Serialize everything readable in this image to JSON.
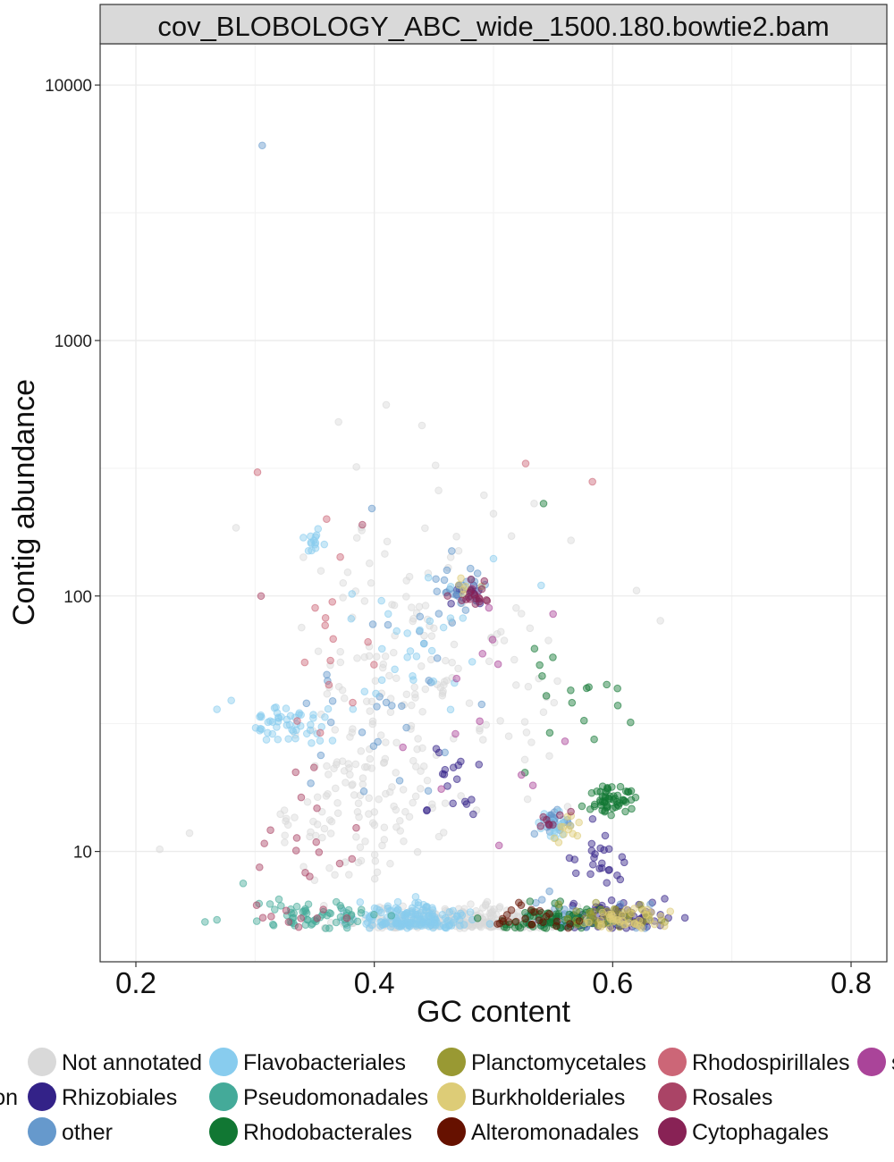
{
  "chart_data": {
    "type": "scatter",
    "title": "cov_BLOBOLOGY_ABC_wide_1500.180.bowtie2.bam",
    "xlabel": "GC content",
    "ylabel": "Contig abundance",
    "x_ticks": [
      "0.2",
      "0.4",
      "0.6",
      "0.8"
    ],
    "x_tick_values": [
      0.2,
      0.4,
      0.6,
      0.8
    ],
    "y_ticks": [
      "10",
      "100",
      "1000",
      "10000"
    ],
    "y_tick_values": [
      10,
      100,
      1000,
      10000
    ],
    "y_scale": "log10",
    "xlim": [
      0.17,
      0.83
    ],
    "ylim": [
      3.7,
      14500
    ],
    "grid": true,
    "legend_position": "bottom",
    "series": [
      {
        "name": "Not annotated",
        "color": "#d9d9d9",
        "clusters": [
          {
            "x": 0.47,
            "y": 5.3,
            "sx": 0.085,
            "sy": 0.05,
            "n": 320
          },
          {
            "x": 0.4,
            "y": 22,
            "sx": 0.05,
            "sy": 0.35,
            "n": 110
          },
          {
            "x": 0.42,
            "y": 80,
            "sx": 0.06,
            "sy": 0.35,
            "n": 70
          },
          {
            "x": 0.52,
            "y": 50,
            "sx": 0.05,
            "sy": 0.4,
            "n": 40
          },
          {
            "x": 0.36,
            "y": 12,
            "sx": 0.06,
            "sy": 0.25,
            "n": 40
          }
        ],
        "points": [
          [
            0.22,
            10.2
          ],
          [
            0.245,
            11.8
          ],
          [
            0.284,
            185
          ],
          [
            0.37,
            480
          ],
          [
            0.385,
            320
          ],
          [
            0.41,
            560
          ],
          [
            0.44,
            465
          ],
          [
            0.492,
            248
          ],
          [
            0.5,
            210
          ],
          [
            0.565,
            165
          ],
          [
            0.62,
            105
          ],
          [
            0.64,
            80
          ]
        ]
      },
      {
        "name": "Rhizobiales",
        "color": "#332288",
        "clusters": [
          {
            "x": 0.6,
            "y": 5.5,
            "sx": 0.04,
            "sy": 0.06,
            "n": 90
          },
          {
            "x": 0.48,
            "y": 105,
            "sx": 0.015,
            "sy": 0.05,
            "n": 12
          },
          {
            "x": 0.465,
            "y": 20,
            "sx": 0.02,
            "sy": 0.12,
            "n": 18
          },
          {
            "x": 0.58,
            "y": 9,
            "sx": 0.04,
            "sy": 0.1,
            "n": 25
          }
        ],
        "points": []
      },
      {
        "name": "other",
        "color": "#6699cc",
        "clusters": [
          {
            "x": 0.48,
            "y": 105,
            "sx": 0.025,
            "sy": 0.06,
            "n": 30
          },
          {
            "x": 0.55,
            "y": 13,
            "sx": 0.012,
            "sy": 0.05,
            "n": 30
          },
          {
            "x": 0.42,
            "y": 40,
            "sx": 0.06,
            "sy": 0.3,
            "n": 30
          },
          {
            "x": 0.58,
            "y": 5.5,
            "sx": 0.05,
            "sy": 0.06,
            "n": 40
          }
        ],
        "points": [
          [
            0.306,
            5800
          ],
          [
            0.398,
            220
          ],
          [
            0.465,
            150
          ]
        ]
      },
      {
        "name": "Flavobacteriales",
        "color": "#88ccee",
        "clusters": [
          {
            "x": 0.43,
            "y": 5.4,
            "sx": 0.04,
            "sy": 0.05,
            "n": 170
          },
          {
            "x": 0.33,
            "y": 32,
            "sx": 0.025,
            "sy": 0.06,
            "n": 50
          },
          {
            "x": 0.35,
            "y": 160,
            "sx": 0.008,
            "sy": 0.05,
            "n": 14
          },
          {
            "x": 0.43,
            "y": 60,
            "sx": 0.05,
            "sy": 0.3,
            "n": 30
          },
          {
            "x": 0.55,
            "y": 13,
            "sx": 0.012,
            "sy": 0.05,
            "n": 15
          }
        ],
        "points": [
          [
            0.268,
            36
          ],
          [
            0.28,
            39
          ],
          [
            0.5,
            140
          ],
          [
            0.54,
            110
          ]
        ]
      },
      {
        "name": "Pseudomonadales",
        "color": "#44aa99",
        "clusters": [
          {
            "x": 0.35,
            "y": 5.6,
            "sx": 0.04,
            "sy": 0.05,
            "n": 60
          }
        ],
        "points": [
          [
            0.258,
            5.3
          ],
          [
            0.268,
            5.4
          ],
          [
            0.29,
            7.5
          ],
          [
            0.32,
            6.5
          ]
        ]
      },
      {
        "name": "Rhodobacterales",
        "color": "#117733",
        "clusters": [
          {
            "x": 0.6,
            "y": 16,
            "sx": 0.02,
            "sy": 0.05,
            "n": 55
          },
          {
            "x": 0.55,
            "y": 5.4,
            "sx": 0.04,
            "sy": 0.05,
            "n": 80
          },
          {
            "x": 0.57,
            "y": 35,
            "sx": 0.04,
            "sy": 0.2,
            "n": 14
          }
        ],
        "points": [
          [
            0.542,
            230
          ],
          [
            0.615,
            32
          ],
          [
            0.58,
            44
          ],
          [
            0.595,
            45
          ]
        ]
      },
      {
        "name": "Planctomycetales",
        "color": "#999933",
        "clusters": [
          {
            "x": 0.6,
            "y": 5.6,
            "sx": 0.035,
            "sy": 0.05,
            "n": 45
          }
        ],
        "points": []
      },
      {
        "name": "Burkholderiales",
        "color": "#ddcc77",
        "clusters": [
          {
            "x": 0.61,
            "y": 5.5,
            "sx": 0.035,
            "sy": 0.05,
            "n": 40
          },
          {
            "x": 0.56,
            "y": 12,
            "sx": 0.012,
            "sy": 0.05,
            "n": 12
          },
          {
            "x": 0.48,
            "y": 110,
            "sx": 0.012,
            "sy": 0.04,
            "n": 6
          }
        ],
        "points": []
      },
      {
        "name": "Alteromonadales",
        "color": "#661100",
        "clusters": [
          {
            "x": 0.53,
            "y": 5.5,
            "sx": 0.03,
            "sy": 0.05,
            "n": 25
          }
        ],
        "points": []
      },
      {
        "name": "Rhodospirillales",
        "color": "#cc6677",
        "clusters": [
          {
            "x": 0.36,
            "y": 60,
            "sx": 0.05,
            "sy": 0.35,
            "n": 14
          }
        ],
        "points": [
          [
            0.302,
            305
          ],
          [
            0.527,
            330
          ],
          [
            0.583,
            280
          ],
          [
            0.36,
            200
          ]
        ]
      },
      {
        "name": "Rosales",
        "color": "#aa4466",
        "clusters": [
          {
            "x": 0.34,
            "y": 14,
            "sx": 0.04,
            "sy": 0.3,
            "n": 16
          },
          {
            "x": 0.34,
            "y": 5.6,
            "sx": 0.04,
            "sy": 0.05,
            "n": 10
          }
        ],
        "points": [
          [
            0.305,
            100
          ],
          [
            0.39,
            190
          ]
        ]
      },
      {
        "name": "Cytophagales",
        "color": "#882255",
        "clusters": [
          {
            "x": 0.48,
            "y": 102,
            "sx": 0.012,
            "sy": 0.04,
            "n": 20
          },
          {
            "x": 0.55,
            "y": 13,
            "sx": 0.01,
            "sy": 0.04,
            "n": 8
          }
        ],
        "points": []
      },
      {
        "name": "s",
        "color": "#aa4499",
        "clusters": [
          {
            "x": 0.5,
            "y": 30,
            "sx": 0.06,
            "sy": 0.35,
            "n": 12
          }
        ],
        "points": [
          [
            0.56,
            27
          ],
          [
            0.55,
            85
          ]
        ]
      }
    ],
    "legend_columns": [
      {
        "items": [
          {
            "label": "Not annotated",
            "series": 0
          },
          {
            "label": "Rhizobiales",
            "series": 1
          },
          {
            "label": "other",
            "series": 2
          }
        ]
      },
      {
        "items": [
          {
            "label": "Flavobacteriales",
            "series": 3
          },
          {
            "label": "Pseudomonadales",
            "series": 4
          },
          {
            "label": "Rhodobacterales",
            "series": 5
          }
        ]
      },
      {
        "items": [
          {
            "label": "Planctomycetales",
            "series": 6
          },
          {
            "label": "Burkholderiales",
            "series": 7
          },
          {
            "label": "Alteromonadales",
            "series": 8
          }
        ]
      },
      {
        "items": [
          {
            "label": "Rhodospirillales",
            "series": 9
          },
          {
            "label": "Rosales",
            "series": 10
          },
          {
            "label": "Cytophagales",
            "series": 11
          }
        ]
      },
      {
        "items": [
          {
            "label": "s",
            "series": 12
          }
        ]
      }
    ],
    "legend_cut_text": "on"
  }
}
